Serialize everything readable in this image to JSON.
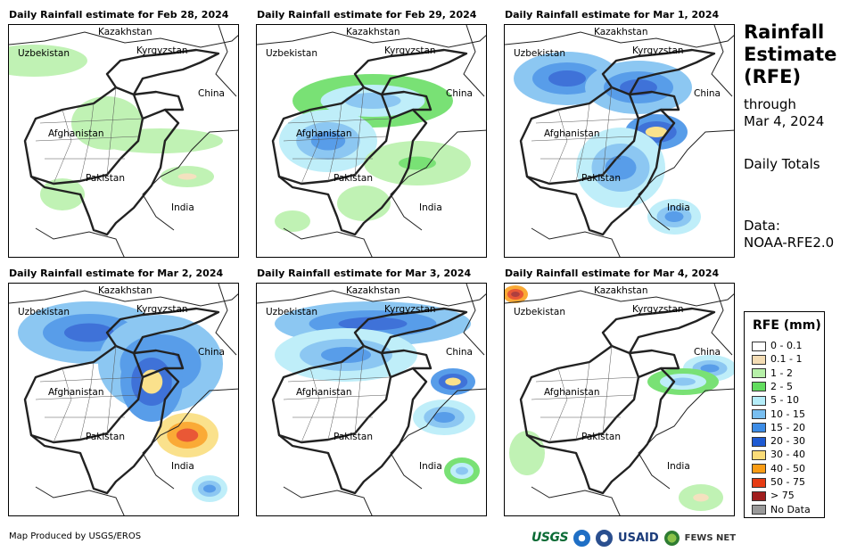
{
  "panels": [
    {
      "title": "Daily Rainfall estimate for Feb 28, 2024",
      "intensity": 1
    },
    {
      "title": "Daily Rainfall estimate for Feb 29, 2024",
      "intensity": 2
    },
    {
      "title": "Daily Rainfall estimate for Mar 1, 2024",
      "intensity": 3
    },
    {
      "title": "Daily Rainfall estimate for Mar 2, 2024",
      "intensity": 4
    },
    {
      "title": "Daily Rainfall estimate for Mar 3, 2024",
      "intensity": 3
    },
    {
      "title": "Daily Rainfall estimate for Mar 4, 2024",
      "intensity": 1
    }
  ],
  "map_labels": {
    "kazakhstan": "Kazakhstan",
    "uzbekistan": "Uzbekistan",
    "kyrgyzstan": "Kyrgyzstan",
    "china": "China",
    "afghanistan": "Afghanistan",
    "pakistan": "Pakistan",
    "india": "India"
  },
  "side": {
    "title_line1": "Rainfall",
    "title_line2": "Estimate",
    "title_line3": "(RFE)",
    "through_line1": "through",
    "through_line2": "Mar 4, 2024",
    "totals": "Daily Totals",
    "data_line1": "Data:",
    "data_line2": "NOAA-RFE2.0"
  },
  "legend": {
    "title": "RFE (mm)",
    "items": [
      {
        "label": "0 - 0.1",
        "color": "#ffffff"
      },
      {
        "label": "0.1 - 1",
        "color": "#f3dcb4"
      },
      {
        "label": "1 - 2",
        "color": "#b6f0a8"
      },
      {
        "label": "2 - 5",
        "color": "#62dc5e"
      },
      {
        "label": "5 - 10",
        "color": "#b4ecf8"
      },
      {
        "label": "10 - 15",
        "color": "#78bef0"
      },
      {
        "label": "15 - 20",
        "color": "#3c8ce6"
      },
      {
        "label": "20 - 30",
        "color": "#1e5ad2"
      },
      {
        "label": "30 - 40",
        "color": "#fadc78"
      },
      {
        "label": "40 - 50",
        "color": "#fa9c14"
      },
      {
        "label": "50 - 75",
        "color": "#e63c14"
      },
      {
        "label": "> 75",
        "color": "#a01e1e"
      },
      {
        "label": "No Data",
        "color": "#999999"
      }
    ]
  },
  "credit": "Map Produced by USGS/EROS",
  "logos": {
    "usgs": "USGS",
    "usaid": "USAID",
    "fews": "FEWS NET"
  }
}
